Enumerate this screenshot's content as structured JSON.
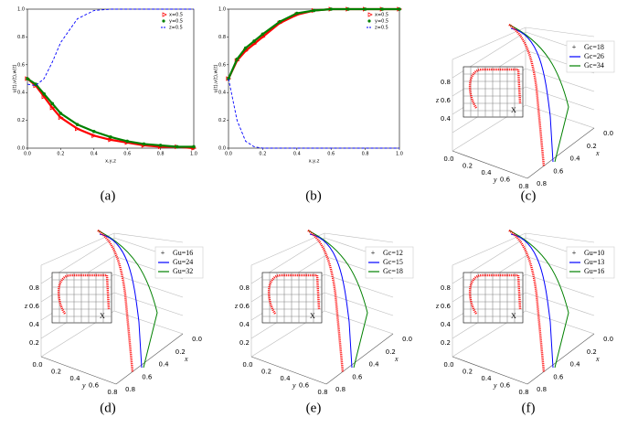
{
  "chart_data": [
    {
      "type": "line",
      "ylabel": "u(t),v(t),w(t)",
      "xlabel": "x,y,z",
      "caption": "(a)",
      "x": [
        0,
        0.05,
        0.1,
        0.15,
        0.2,
        0.3,
        0.4,
        0.5,
        0.6,
        0.7,
        0.8,
        0.9,
        1.0
      ],
      "xlim": [
        0,
        1
      ],
      "ylim": [
        0,
        1
      ],
      "xticks": [
        {
          "value": 0,
          "label": "0.0"
        },
        0.2,
        0.4,
        0.6,
        0.8,
        {
          "value": 1,
          "label": "1.0"
        }
      ],
      "yticks": [
        {
          "value": 0,
          "label": "0.0"
        },
        0.2,
        0.4,
        0.6,
        0.8,
        {
          "value": 1,
          "label": "1.0"
        }
      ],
      "legend": "upper right",
      "series": [
        {
          "name": "x=0.5",
          "color": "#ff0000",
          "marker": "triangle",
          "values": [
            0.5,
            0.45,
            0.37,
            0.29,
            0.22,
            0.14,
            0.09,
            0.06,
            0.04,
            0.02,
            0.01,
            0.01,
            0.0
          ]
        },
        {
          "name": "y=0.5",
          "color": "#008000",
          "marker": "dot",
          "values": [
            0.5,
            0.46,
            0.39,
            0.32,
            0.25,
            0.17,
            0.12,
            0.08,
            0.05,
            0.03,
            0.02,
            0.01,
            0.01
          ]
        },
        {
          "name": "z=0.5",
          "color": "#0000ff",
          "marker": "dashed",
          "values": [
            0.46,
            0.45,
            0.5,
            0.62,
            0.76,
            0.93,
            0.99,
            1.0,
            1.0,
            1.0,
            1.0,
            1.0,
            1.0
          ]
        }
      ]
    },
    {
      "type": "line",
      "ylabel": "u(t),v(t),w(t)",
      "xlabel": "x,y,z",
      "caption": "(b)",
      "x": [
        0,
        0.05,
        0.1,
        0.15,
        0.2,
        0.3,
        0.4,
        0.5,
        0.6,
        0.7,
        0.8,
        0.9,
        1.0
      ],
      "xlim": [
        0,
        1
      ],
      "ylim": [
        0,
        1
      ],
      "xticks": [
        {
          "value": 0,
          "label": "0.0"
        },
        0.2,
        0.4,
        0.6,
        0.8,
        {
          "value": 1,
          "label": "1.0"
        }
      ],
      "yticks": [
        {
          "value": 0,
          "label": "0.0"
        },
        0.2,
        0.4,
        0.6,
        0.8,
        {
          "value": 1,
          "label": "1.0"
        }
      ],
      "legend": "upper right",
      "series": [
        {
          "name": "x=0.5",
          "color": "#ff0000",
          "marker": "triangle",
          "values": [
            0.5,
            0.63,
            0.7,
            0.75,
            0.8,
            0.9,
            0.96,
            0.99,
            1,
            1,
            1,
            1,
            1
          ]
        },
        {
          "name": "y=0.5",
          "color": "#008000",
          "marker": "dot",
          "values": [
            0.5,
            0.64,
            0.72,
            0.77,
            0.82,
            0.91,
            0.97,
            0.99,
            1,
            1,
            1,
            1,
            1
          ]
        },
        {
          "name": "z=0.5",
          "color": "#0000ff",
          "marker": "dashed",
          "values": [
            0.5,
            0.2,
            0.05,
            0.01,
            0,
            0,
            0,
            0,
            0,
            0,
            0,
            0,
            0
          ]
        }
      ]
    }
  ],
  "panels_3d": [
    {
      "caption": "(c)",
      "legend": [
        {
          "name": "Gc=18",
          "color": "#ff0000"
        },
        {
          "name": "Gc=26",
          "color": "#0000ff"
        },
        {
          "name": "Gc=34",
          "color": "#008000"
        }
      ],
      "zticks": [
        "0.4",
        "0.6",
        "0.8"
      ],
      "yticks": [
        "0.0",
        "0.2",
        "0.4",
        "0.6",
        "0.8"
      ],
      "xticks": [
        "0.0",
        "0.2",
        "0.4",
        "0.6",
        "0.8"
      ],
      "xlabel": "x",
      "ylabel": "y",
      "zlabel": "z",
      "inset": "X"
    },
    {
      "caption": "(d)",
      "legend": [
        {
          "name": "Gu=16",
          "color": "#ff0000"
        },
        {
          "name": "Gu=24",
          "color": "#0000ff"
        },
        {
          "name": "Gu=32",
          "color": "#008000"
        }
      ],
      "zticks": [
        "0.2",
        "0.4",
        "0.6",
        "0.8"
      ],
      "yticks": [
        "0.0",
        "0.2",
        "0.4",
        "0.6",
        "0.8"
      ],
      "xticks": [
        "0.0",
        "0.2",
        "0.4",
        "0.6",
        "0.8"
      ],
      "xlabel": "x",
      "ylabel": "y",
      "zlabel": "z",
      "inset": "X"
    },
    {
      "caption": "(e)",
      "legend": [
        {
          "name": "Gc=12",
          "color": "#ff0000"
        },
        {
          "name": "Gc=15",
          "color": "#0000ff"
        },
        {
          "name": "Gc=18",
          "color": "#008000"
        }
      ],
      "zticks": [
        "0.2",
        "0.4",
        "0.6",
        "0.8"
      ],
      "yticks": [
        "0.0",
        "0.2",
        "0.4",
        "0.6",
        "0.8"
      ],
      "xticks": [
        "0.0",
        "0.2",
        "0.4",
        "0.6",
        "0.8"
      ],
      "xlabel": "x",
      "ylabel": "y",
      "zlabel": "z",
      "inset": "X"
    },
    {
      "caption": "(f)",
      "legend": [
        {
          "name": "Gu=10",
          "color": "#ff0000"
        },
        {
          "name": "Gu=13",
          "color": "#0000ff"
        },
        {
          "name": "Gu=16",
          "color": "#008000"
        }
      ],
      "zticks": [
        "0.2",
        "0.4",
        "0.6",
        "0.8"
      ],
      "yticks": [
        "0.0",
        "0.2",
        "0.4",
        "0.6",
        "0.8"
      ],
      "xticks": [
        "0.0",
        "0.2",
        "0.4",
        "0.6",
        "0.8"
      ],
      "xlabel": "x",
      "ylabel": "y",
      "zlabel": "z",
      "inset": "X"
    }
  ]
}
